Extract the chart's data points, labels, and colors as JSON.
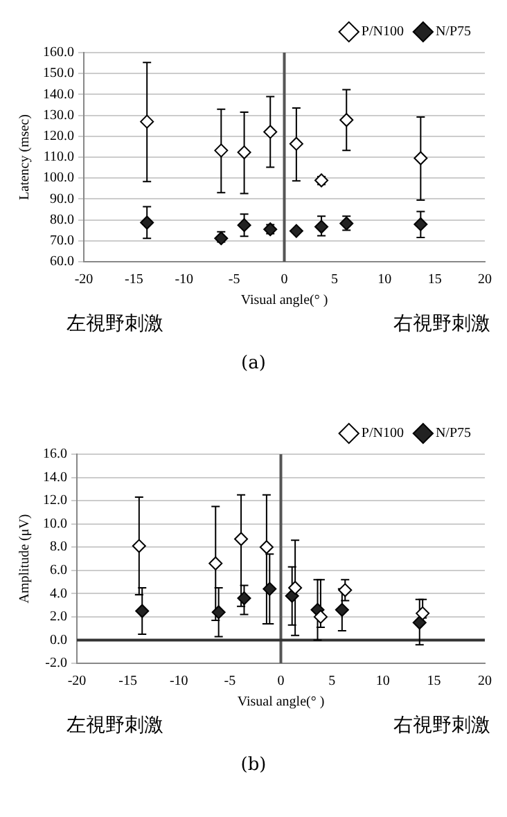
{
  "chart_data": [
    {
      "type": "scatter",
      "xlabel": "Visual angle(° )",
      "ylabel": "Latency (msec)",
      "annotations": [
        "左視野刺激",
        "右視野刺激",
        "(a)"
      ],
      "xlim": [
        -20,
        20
      ],
      "xticks": [
        -20,
        -15,
        -10,
        -5,
        0,
        5,
        10,
        15,
        20
      ],
      "ylim": [
        60,
        160
      ],
      "yticks": [
        {
          "value": 60,
          "label": "60.0"
        },
        {
          "value": 70,
          "label": "70.0"
        },
        {
          "value": 80,
          "label": "80.0"
        },
        {
          "value": 90,
          "label": "90.0"
        },
        {
          "value": 100,
          "label": "100.0"
        },
        {
          "value": 110,
          "label": "110.0"
        },
        {
          "value": 120,
          "label": "120.0"
        },
        {
          "value": 130,
          "label": "130.0"
        },
        {
          "value": 140,
          "label": "140.0"
        },
        {
          "value": 150,
          "label": "150.0"
        },
        {
          "value": 160,
          "label": "160.0"
        }
      ],
      "grid": "y",
      "legend": "top right",
      "marker": "diamond",
      "ref_lines": [
        {
          "axis": "x",
          "value": 0,
          "color": "#555555"
        }
      ],
      "series": [
        {
          "name": "P/N100",
          "color": "#ffffff",
          "x": [
            -13.7,
            -6.3,
            -4.0,
            -1.4,
            1.2,
            3.7,
            6.2,
            13.6
          ],
          "values": [
            127,
            113.2,
            112.3,
            122.1,
            116.4,
            98.9,
            127.8,
            109.5
          ],
          "errors": [
            [
              98.3,
              155.3
            ],
            [
              93.0,
              132.9
            ],
            [
              92.6,
              131.5
            ],
            [
              105.2,
              139.0
            ],
            [
              98.7,
              133.5
            ],
            [
              96.9,
              100.7
            ],
            [
              113.2,
              142.3
            ],
            [
              89.5,
              129.2
            ]
          ]
        },
        {
          "name": "N/P75",
          "color": "#222222",
          "x": [
            -13.7,
            -6.3,
            -4.0,
            -1.4,
            1.2,
            3.7,
            6.2,
            13.6
          ],
          "values": [
            78.7,
            71.2,
            77.5,
            75.5,
            74.7,
            76.7,
            78.3,
            77.9
          ],
          "errors": [
            [
              71.2,
              86.3
            ],
            [
              69.4,
              74.3
            ],
            [
              72.2,
              82.8
            ],
            [
              73.4,
              77.7
            ],
            null,
            [
              72.4,
              81.8
            ],
            [
              75.1,
              81.8
            ],
            [
              71.6,
              84.0
            ]
          ]
        }
      ]
    },
    {
      "type": "scatter",
      "xlabel": "Visual angle(° )",
      "ylabel": "Amplitude (μV)",
      "annotations": [
        "左視野刺激",
        "右視野刺激",
        "(b)"
      ],
      "xlim": [
        -20,
        20
      ],
      "xticks": [
        -20,
        -15,
        -10,
        -5,
        0,
        5,
        10,
        15,
        20
      ],
      "ylim": [
        -2,
        16
      ],
      "yticks": [
        {
          "value": -2,
          "label": "-2.0"
        },
        {
          "value": 0,
          "label": "0.0"
        },
        {
          "value": 2,
          "label": "2.0"
        },
        {
          "value": 4,
          "label": "4.0"
        },
        {
          "value": 6,
          "label": "6.0"
        },
        {
          "value": 8,
          "label": "8.0"
        },
        {
          "value": 10,
          "label": "10.0"
        },
        {
          "value": 12,
          "label": "12.0"
        },
        {
          "value": 14,
          "label": "14.0"
        },
        {
          "value": 16,
          "label": "16.0"
        }
      ],
      "grid": "y",
      "legend": "top right",
      "marker": "diamond",
      "ref_lines": [
        {
          "axis": "x",
          "value": 0,
          "color": "#555555"
        },
        {
          "axis": "y",
          "value": 0,
          "color": "#333333"
        }
      ],
      "series": [
        {
          "name": "P/N100",
          "color": "#ffffff",
          "x": [
            -13.9,
            -6.4,
            -3.9,
            -1.4,
            1.4,
            3.9,
            6.3,
            13.9
          ],
          "values": [
            8.1,
            6.6,
            8.7,
            8.0,
            4.5,
            2.0,
            4.3,
            2.3
          ],
          "errors": [
            [
              3.9,
              12.3
            ],
            [
              1.7,
              11.5
            ],
            [
              2.9,
              12.5
            ],
            [
              1.4,
              12.5
            ],
            [
              0.4,
              8.6
            ],
            [
              1.1,
              5.2
            ],
            [
              3.4,
              5.2
            ],
            [
              1.9,
              3.5
            ]
          ]
        },
        {
          "name": "N/P75",
          "color": "#222222",
          "x": [
            -13.6,
            -6.1,
            -3.6,
            -1.1,
            1.1,
            3.6,
            6.0,
            13.6
          ],
          "values": [
            2.5,
            2.4,
            3.6,
            4.4,
            3.8,
            2.6,
            2.6,
            1.5
          ],
          "errors": [
            [
              0.5,
              4.5
            ],
            [
              0.3,
              4.5
            ],
            [
              2.2,
              4.7
            ],
            [
              1.4,
              7.4
            ],
            [
              1.3,
              6.3
            ],
            [
              0,
              5.2
            ],
            [
              0.8,
              4.4
            ],
            [
              -0.4,
              3.5
            ]
          ]
        }
      ]
    }
  ]
}
